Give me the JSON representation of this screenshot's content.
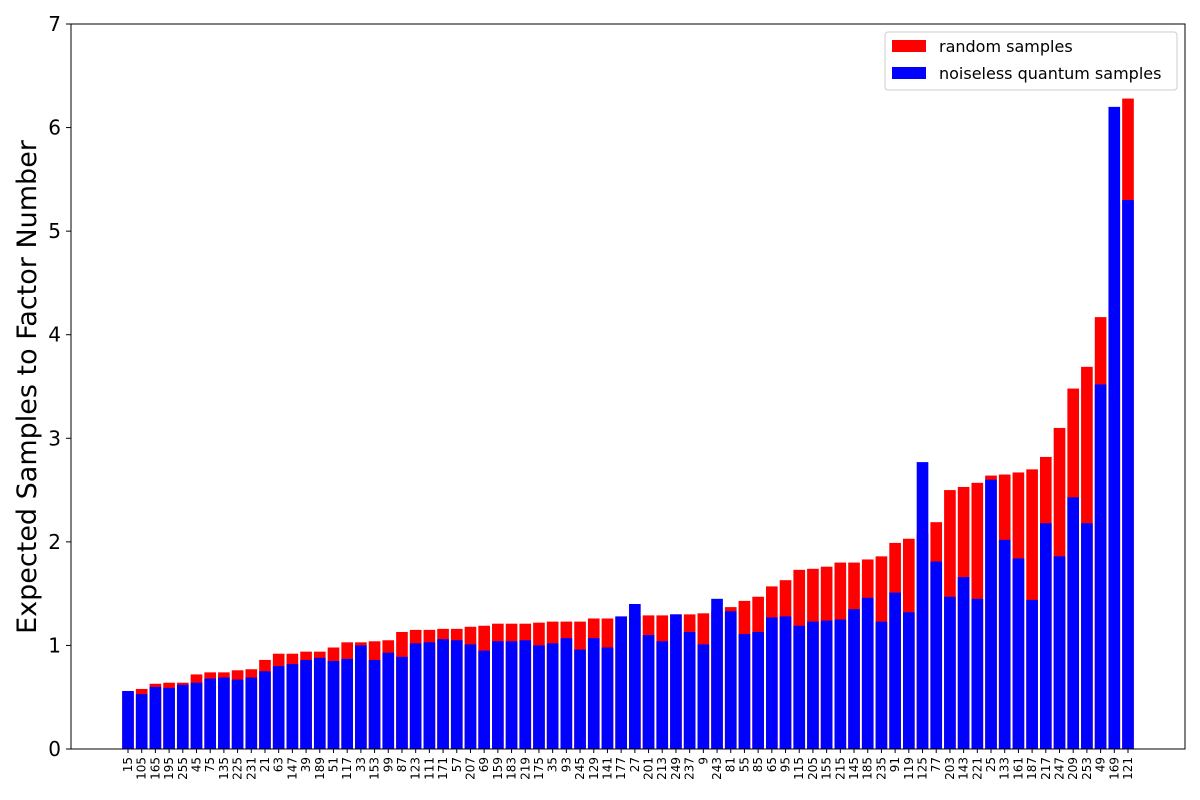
{
  "chart_data": {
    "type": "bar",
    "ylabel": "Expected Samples to Factor Number",
    "xlabel": "",
    "ylim": [
      0,
      7
    ],
    "yticks": [
      0,
      1,
      2,
      3,
      4,
      5,
      6,
      7
    ],
    "grid": false,
    "legend_position": "top-right",
    "bar_mode": "overlaid",
    "categories": [
      "15",
      "105",
      "165",
      "195",
      "255",
      "45",
      "75",
      "135",
      "225",
      "231",
      "21",
      "63",
      "147",
      "39",
      "189",
      "51",
      "117",
      "33",
      "153",
      "99",
      "87",
      "123",
      "111",
      "171",
      "57",
      "207",
      "69",
      "159",
      "183",
      "219",
      "175",
      "35",
      "93",
      "245",
      "129",
      "141",
      "177",
      "27",
      "201",
      "213",
      "249",
      "237",
      "9",
      "243",
      "81",
      "55",
      "85",
      "65",
      "95",
      "115",
      "205",
      "155",
      "215",
      "145",
      "185",
      "235",
      "91",
      "119",
      "125",
      "77",
      "203",
      "143",
      "221",
      "25",
      "133",
      "161",
      "187",
      "217",
      "247",
      "209",
      "253",
      "49",
      "169",
      "121"
    ],
    "series": [
      {
        "name": "random samples",
        "color": "#ff0000",
        "values": [
          0.55,
          0.58,
          0.63,
          0.64,
          0.64,
          0.72,
          0.74,
          0.74,
          0.76,
          0.77,
          0.86,
          0.92,
          0.92,
          0.94,
          0.94,
          0.98,
          1.03,
          1.03,
          1.04,
          1.05,
          1.13,
          1.15,
          1.15,
          1.16,
          1.16,
          1.18,
          1.19,
          1.21,
          1.21,
          1.21,
          1.22,
          1.23,
          1.23,
          1.23,
          1.26,
          1.26,
          1.28,
          1.28,
          1.29,
          1.29,
          1.3,
          1.3,
          1.31,
          1.33,
          1.37,
          1.43,
          1.47,
          1.57,
          1.63,
          1.73,
          1.74,
          1.76,
          1.8,
          1.8,
          1.83,
          1.86,
          1.99,
          2.03,
          2.08,
          2.19,
          2.5,
          2.53,
          2.57,
          2.64,
          2.65,
          2.67,
          2.7,
          2.82,
          3.1,
          3.48,
          3.69,
          4.17,
          5.27,
          6.28
        ]
      },
      {
        "name": "noiseless quantum samples",
        "color": "#0000ff",
        "values": [
          0.56,
          0.53,
          0.6,
          0.59,
          0.62,
          0.64,
          0.68,
          0.69,
          0.67,
          0.69,
          0.75,
          0.8,
          0.82,
          0.86,
          0.88,
          0.85,
          0.87,
          1.0,
          0.86,
          0.93,
          0.89,
          1.02,
          1.03,
          1.06,
          1.05,
          1.01,
          0.95,
          1.04,
          1.04,
          1.05,
          1.0,
          1.02,
          1.07,
          0.96,
          1.07,
          0.98,
          1.28,
          1.4,
          1.1,
          1.04,
          1.3,
          1.13,
          1.01,
          1.45,
          1.33,
          1.11,
          1.13,
          1.27,
          1.28,
          1.19,
          1.23,
          1.24,
          1.25,
          1.35,
          1.46,
          1.23,
          1.51,
          1.32,
          2.77,
          1.81,
          1.47,
          1.66,
          1.45,
          2.6,
          2.02,
          1.84,
          1.44,
          2.18,
          1.86,
          2.43,
          2.18,
          3.52,
          6.2,
          5.3
        ]
      }
    ]
  }
}
